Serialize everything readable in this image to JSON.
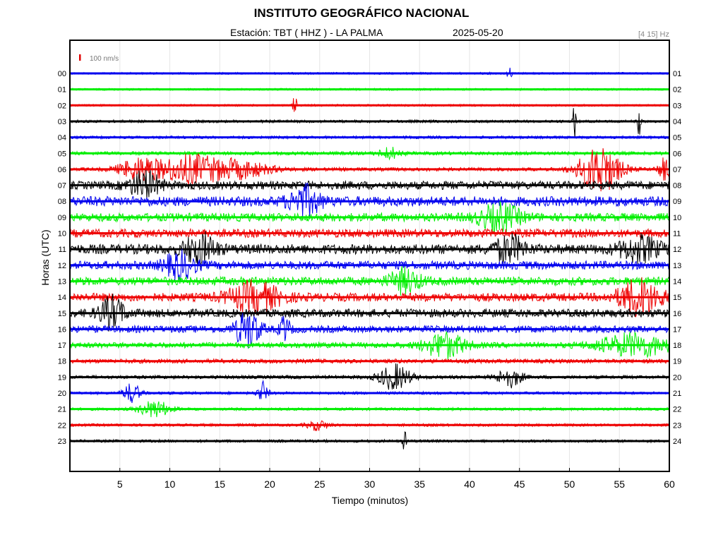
{
  "header": {
    "title": "INSTITUTO GEOGRÁFICO NACIONAL",
    "station": "Estación:  TBT ( HHZ ) - LA PALMA",
    "date": "2025-05-20",
    "band": "[4 15] Hz"
  },
  "chart_data": {
    "type": "line",
    "title": "INSTITUTO GEOGRÁFICO NACIONAL",
    "xlabel": "Tiempo (minutos)",
    "ylabel": "Horas (UTC)",
    "xlim": [
      0,
      60
    ],
    "x_ticks": [
      "5",
      "10",
      "15",
      "20",
      "25",
      "30",
      "35",
      "40",
      "45",
      "50",
      "55",
      "60"
    ],
    "scale_label": "100 nm/s",
    "scale_color": "#e00000",
    "grid": true,
    "trace_colors": [
      "#0000ee",
      "#00ee00",
      "#ee0000",
      "#000000"
    ],
    "left_hour_labels": [
      "00",
      "01",
      "02",
      "03",
      "04",
      "05",
      "06",
      "07",
      "08",
      "09",
      "10",
      "11",
      "12",
      "13",
      "14",
      "15",
      "16",
      "17",
      "18",
      "19",
      "20",
      "21",
      "22",
      "23"
    ],
    "right_hour_labels": [
      "01",
      "02",
      "03",
      "04",
      "05",
      "06",
      "07",
      "08",
      "09",
      "10",
      "11",
      "12",
      "13",
      "14",
      "15",
      "16",
      "17",
      "18",
      "19",
      "20",
      "21",
      "22",
      "23",
      "24"
    ],
    "noise_levels": [
      1.5,
      1.5,
      1.5,
      2,
      2,
      2.5,
      2.5,
      6,
      7,
      6,
      6,
      7,
      6,
      6,
      6,
      6,
      5,
      4,
      3,
      2.5,
      2,
      2,
      2,
      2
    ],
    "events": [
      {
        "hour": 0,
        "minute": 44,
        "amplitude": 10,
        "width": 0.2
      },
      {
        "hour": 2,
        "minute": 22.5,
        "amplitude": 16,
        "width": 0.2
      },
      {
        "hour": 3,
        "minute": 50.5,
        "amplitude": 28,
        "width": 0.15
      },
      {
        "hour": 3,
        "minute": 57,
        "amplitude": 28,
        "width": 0.15
      },
      {
        "hour": 5,
        "minute": 32,
        "amplitude": 8,
        "width": 1
      },
      {
        "hour": 6,
        "minute": 7,
        "amplitude": 16,
        "width": 2
      },
      {
        "hour": 6,
        "minute": 12,
        "amplitude": 20,
        "width": 3
      },
      {
        "hour": 6,
        "minute": 17,
        "amplitude": 12,
        "width": 3
      },
      {
        "hour": 6,
        "minute": 53,
        "amplitude": 35,
        "width": 2
      },
      {
        "hour": 6,
        "minute": 59.5,
        "amplitude": 16,
        "width": 0.6
      },
      {
        "hour": 7,
        "minute": 7.5,
        "amplitude": 18,
        "width": 1.5
      },
      {
        "hour": 8,
        "minute": 23.5,
        "amplitude": 20,
        "width": 1.5
      },
      {
        "hour": 9,
        "minute": 43,
        "amplitude": 18,
        "width": 2
      },
      {
        "hour": 11,
        "minute": 13,
        "amplitude": 22,
        "width": 1.5
      },
      {
        "hour": 11,
        "minute": 44,
        "amplitude": 18,
        "width": 1.5
      },
      {
        "hour": 11,
        "minute": 57,
        "amplitude": 16,
        "width": 2
      },
      {
        "hour": 12,
        "minute": 11,
        "amplitude": 18,
        "width": 1.5
      },
      {
        "hour": 13,
        "minute": 33.5,
        "amplitude": 16,
        "width": 1.5
      },
      {
        "hour": 14,
        "minute": 18.5,
        "amplitude": 20,
        "width": 2.5
      },
      {
        "hour": 14,
        "minute": 57,
        "amplitude": 26,
        "width": 2
      },
      {
        "hour": 15,
        "minute": 4.2,
        "amplitude": 22,
        "width": 1.2
      },
      {
        "hour": 16,
        "minute": 17.8,
        "amplitude": 26,
        "width": 1.2
      },
      {
        "hour": 16,
        "minute": 21.5,
        "amplitude": 18,
        "width": 0.5
      },
      {
        "hour": 17,
        "minute": 37.5,
        "amplitude": 18,
        "width": 2
      },
      {
        "hour": 17,
        "minute": 56.5,
        "amplitude": 16,
        "width": 3.5
      },
      {
        "hour": 19,
        "minute": 32.5,
        "amplitude": 18,
        "width": 1.5
      },
      {
        "hour": 19,
        "minute": 44,
        "amplitude": 14,
        "width": 1.2
      },
      {
        "hour": 20,
        "minute": 6.2,
        "amplitude": 14,
        "width": 0.8
      },
      {
        "hour": 20,
        "minute": 19.3,
        "amplitude": 16,
        "width": 0.5
      },
      {
        "hour": 21,
        "minute": 8.5,
        "amplitude": 12,
        "width": 1.5
      },
      {
        "hour": 22,
        "minute": 24.8,
        "amplitude": 7,
        "width": 1
      },
      {
        "hour": 23,
        "minute": 33.5,
        "amplitude": 14,
        "width": 0.2
      }
    ]
  }
}
